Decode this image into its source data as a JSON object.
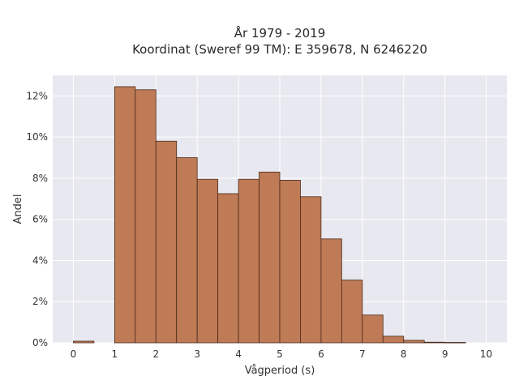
{
  "chart_data": {
    "type": "bar",
    "title_line1": "År 1979 - 2019",
    "title_line2": "Koordinat (Sweref 99 TM): E 359678, N 6246220",
    "xlabel": "Vågperiod (s)",
    "ylabel": "Andel",
    "xlim": [
      -0.5,
      10.5
    ],
    "ylim": [
      0,
      13
    ],
    "xticks": [
      "0",
      "1",
      "2",
      "3",
      "4",
      "5",
      "6",
      "7",
      "8",
      "9",
      "10"
    ],
    "yticks": [
      "0%",
      "2%",
      "4%",
      "6%",
      "8%",
      "10%",
      "12%"
    ],
    "bin_width": 0.5,
    "bins": [
      {
        "x": 0.0,
        "value": 0.08
      },
      {
        "x": 0.5,
        "value": 0.0
      },
      {
        "x": 1.0,
        "value": 12.45
      },
      {
        "x": 1.5,
        "value": 12.3
      },
      {
        "x": 2.0,
        "value": 9.8
      },
      {
        "x": 2.5,
        "value": 9.0
      },
      {
        "x": 3.0,
        "value": 7.95
      },
      {
        "x": 3.5,
        "value": 7.25
      },
      {
        "x": 4.0,
        "value": 7.95
      },
      {
        "x": 4.5,
        "value": 8.3
      },
      {
        "x": 5.0,
        "value": 7.9
      },
      {
        "x": 5.5,
        "value": 7.1
      },
      {
        "x": 6.0,
        "value": 5.05
      },
      {
        "x": 6.5,
        "value": 3.05
      },
      {
        "x": 7.0,
        "value": 1.35
      },
      {
        "x": 7.5,
        "value": 0.32
      },
      {
        "x": 8.0,
        "value": 0.12
      },
      {
        "x": 8.5,
        "value": 0.03
      },
      {
        "x": 9.0,
        "value": 0.02
      }
    ],
    "grid": true,
    "colors": {
      "bar_fill": "#bf7a56",
      "bar_edge": "#4a2a1a",
      "plot_bg": "#e8e8f0",
      "grid": "#ffffff"
    }
  }
}
